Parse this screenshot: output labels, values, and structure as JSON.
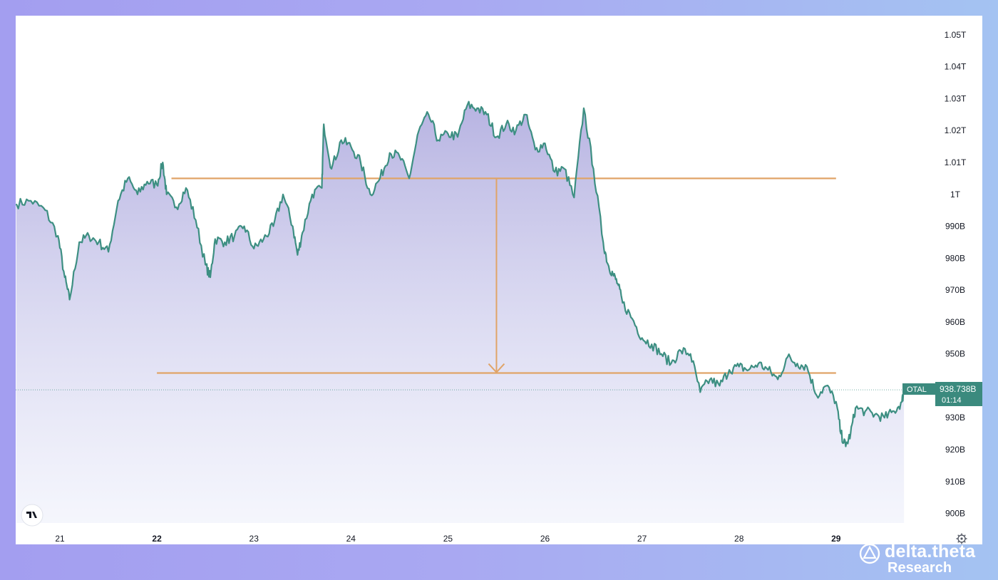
{
  "chart_data": {
    "type": "area",
    "x_tick_labels": [
      "21",
      "22",
      "23",
      "24",
      "25",
      "26",
      "27",
      "28",
      "29"
    ],
    "y_tick_labels": [
      "1.05T",
      "1.04T",
      "1.03T",
      "1.02T",
      "1.01T",
      "1T",
      "990B",
      "980B",
      "970B",
      "960B",
      "950B",
      "940B",
      "930B",
      "920B",
      "910B",
      "900B"
    ],
    "ylim": [
      897,
      1056
    ],
    "xlim": [
      20.55,
      30.3
    ],
    "series": [
      {
        "values_unit": "billion USD",
        "x": [
          20.55,
          20.7,
          20.85,
          20.98,
          21.05,
          21.1,
          21.2,
          21.3,
          21.4,
          21.5,
          21.6,
          21.7,
          21.8,
          21.9,
          22.0,
          22.06,
          22.1,
          22.2,
          22.3,
          22.4,
          22.5,
          22.55,
          22.6,
          22.7,
          22.8,
          22.9,
          23.0,
          23.1,
          23.2,
          23.3,
          23.4,
          23.45,
          23.5,
          23.6,
          23.7,
          23.72,
          23.8,
          23.9,
          24.0,
          24.1,
          24.2,
          24.3,
          24.4,
          24.5,
          24.6,
          24.7,
          24.8,
          24.9,
          25.0,
          25.1,
          25.2,
          25.3,
          25.4,
          25.5,
          25.6,
          25.7,
          25.8,
          25.9,
          26.0,
          26.1,
          26.2,
          26.3,
          26.4,
          26.5,
          26.6,
          26.65,
          26.7,
          26.75,
          26.8,
          26.9,
          27.0,
          27.1,
          27.2,
          27.3,
          27.4,
          27.5,
          27.6,
          27.7,
          27.8,
          27.9,
          28.0,
          28.1,
          28.2,
          28.3,
          28.4,
          28.5,
          28.6,
          28.7,
          28.8,
          28.9,
          29.0,
          29.05,
          29.1,
          29.15,
          29.2,
          29.3,
          29.4,
          29.5,
          29.6,
          29.68,
          29.7
        ],
        "values": [
          997,
          998,
          995,
          987,
          974,
          967,
          985,
          987,
          985,
          982,
          998,
          1005,
          1000,
          1004,
          1003,
          1010,
          1000,
          996,
          1002,
          992,
          978,
          974,
          986,
          985,
          987,
          990,
          983,
          986,
          990,
          1000,
          990,
          981,
          988,
          1000,
          1002,
          1022,
          1008,
          1017,
          1015,
          1010,
          1000,
          1005,
          1013,
          1012,
          1005,
          1020,
          1025,
          1017,
          1019,
          1018,
          1028,
          1027,
          1025,
          1018,
          1022,
          1020,
          1025,
          1014,
          1016,
          1007,
          1008,
          999,
          1027,
          1008,
          985,
          978,
          975,
          972,
          966,
          961,
          955,
          953,
          950,
          947,
          951,
          950,
          938,
          942,
          940,
          945,
          946,
          945,
          947,
          945,
          942,
          949,
          947,
          946,
          937,
          940,
          935,
          925,
          921,
          925,
          933,
          932,
          931,
          930,
          932,
          935,
          938.738
        ]
      }
    ],
    "reference_levels": [
      1005,
      944
    ],
    "drop_arrow": {
      "from": 1005,
      "to": 944,
      "at_x": 25.5
    },
    "current_value": 938.738,
    "current_label_symbol": "OTAL",
    "current_label_value": "938.738B",
    "current_label_countdown": "01:14",
    "colors": {
      "line": "#3d8f82",
      "area_top": "#b3afe0",
      "area_bottom": "#eef0fb",
      "reference": "#e0a468",
      "label_bg": "#3b8a7e"
    }
  },
  "branding": {
    "platform_logo": "tv-logo",
    "name": "delta.theta",
    "subtitle": "Research"
  }
}
